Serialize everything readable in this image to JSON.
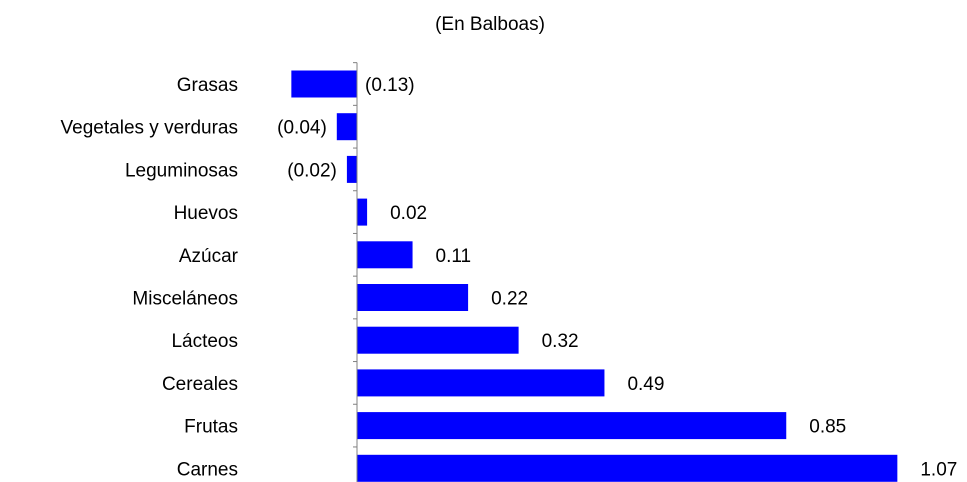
{
  "chart_data": {
    "type": "bar",
    "orientation": "horizontal",
    "subtitle": "(En Balboas)",
    "categories": [
      "Grasas",
      "Vegetales y verduras",
      "Leguminosas",
      "Huevos",
      "Azúcar",
      "Misceláneos",
      "Lácteos",
      "Cereales",
      "Frutas",
      "Carnes"
    ],
    "values": [
      -0.13,
      -0.04,
      -0.02,
      0.02,
      0.11,
      0.22,
      0.32,
      0.49,
      0.85,
      1.07
    ],
    "value_labels": [
      "(0.13)",
      "(0.04)",
      "(0.02)",
      "0.02",
      "0.11",
      "0.22",
      "0.32",
      "0.49",
      "0.85",
      "1.07"
    ],
    "bar_color": "#0000FF",
    "grid": false,
    "legend": "none"
  }
}
